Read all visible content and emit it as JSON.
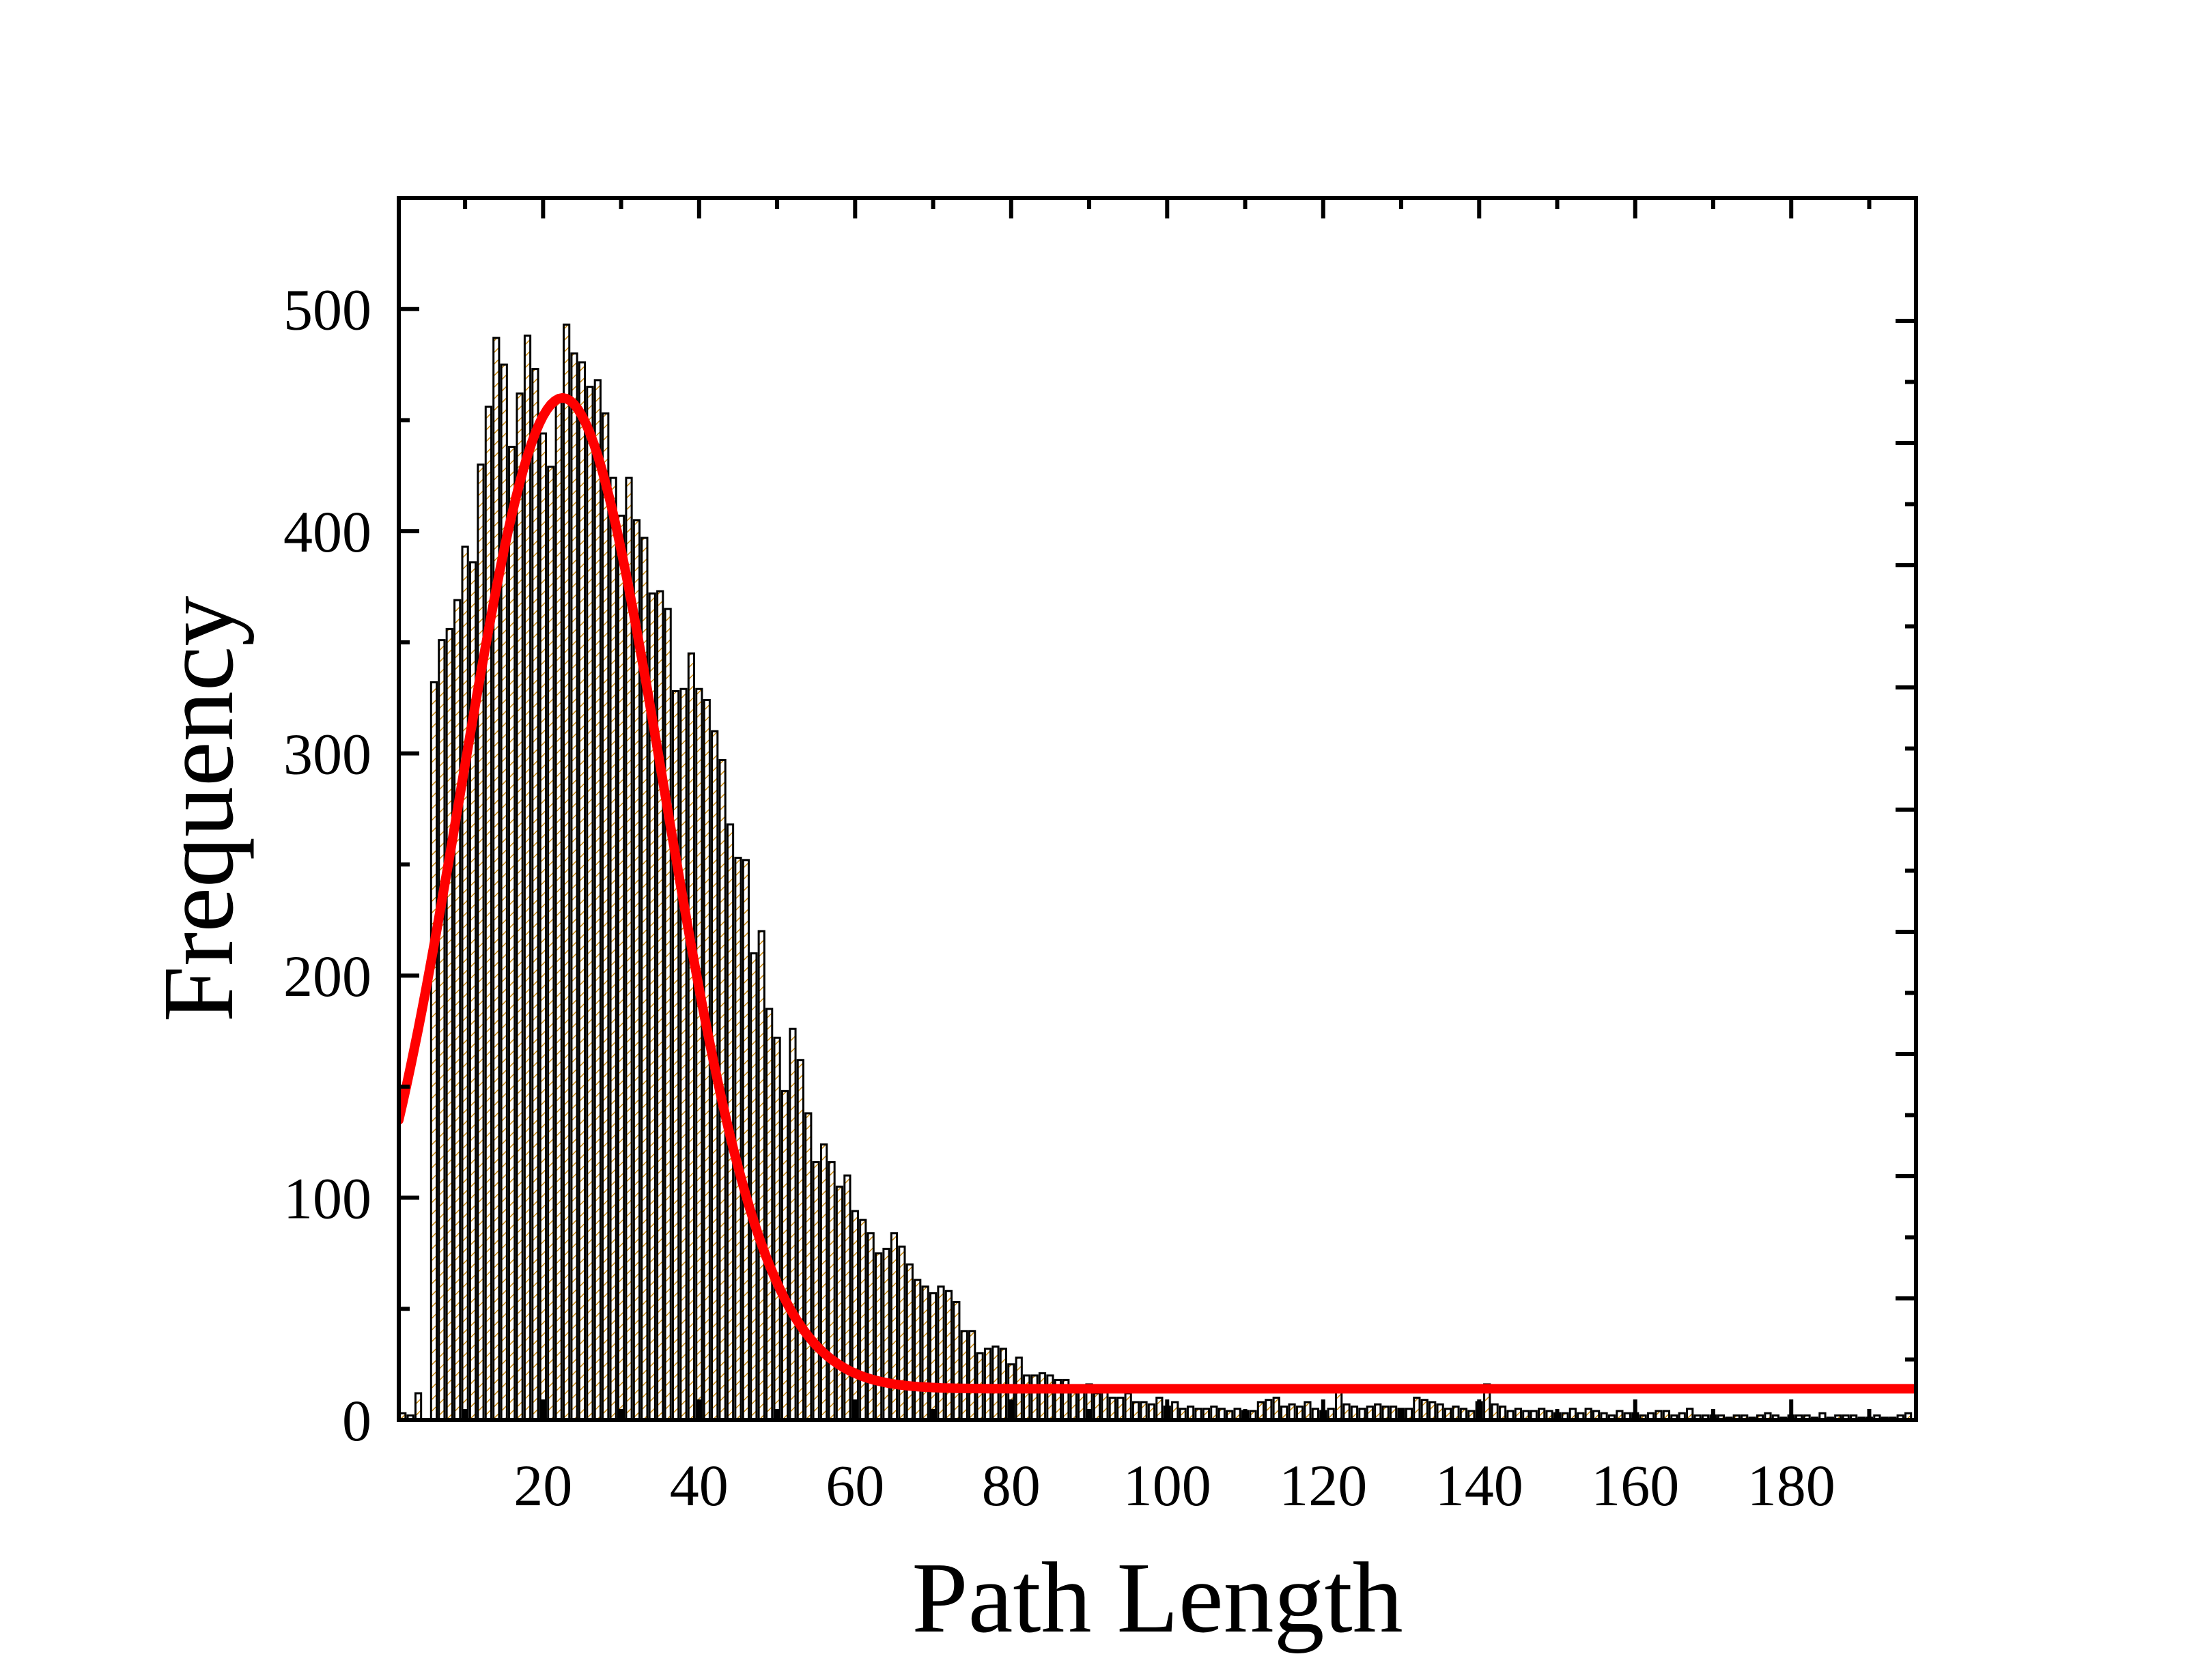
{
  "chart_data": {
    "type": "bar",
    "xlabel": "Path Length",
    "ylabel": "Frequency",
    "xlim": [
      1.5,
      196
    ],
    "ylim": [
      0,
      550
    ],
    "x_ticks": [
      20,
      40,
      60,
      80,
      100,
      120,
      140,
      160,
      180
    ],
    "y_ticks": [
      0,
      100,
      200,
      300,
      400,
      500
    ],
    "bin_width": 1,
    "x": [
      2,
      3,
      4,
      5,
      6,
      7,
      8,
      9,
      10,
      11,
      12,
      13,
      14,
      15,
      16,
      17,
      18,
      19,
      20,
      21,
      22,
      23,
      24,
      25,
      26,
      27,
      28,
      29,
      30,
      31,
      32,
      33,
      34,
      35,
      36,
      37,
      38,
      39,
      40,
      41,
      42,
      43,
      44,
      45,
      46,
      47,
      48,
      49,
      50,
      51,
      52,
      53,
      54,
      55,
      56,
      57,
      58,
      59,
      60,
      61,
      62,
      63,
      64,
      65,
      66,
      67,
      68,
      69,
      70,
      71,
      72,
      73,
      74,
      75,
      76,
      77,
      78,
      79,
      80,
      81,
      82,
      83,
      84,
      85,
      86,
      87,
      88,
      89,
      90,
      91,
      92,
      93,
      94,
      95,
      96,
      97,
      98,
      99,
      100,
      101,
      102,
      103,
      104,
      105,
      106,
      107,
      108,
      109,
      110,
      111,
      112,
      113,
      114,
      115,
      116,
      117,
      118,
      119,
      120,
      121,
      122,
      123,
      124,
      125,
      126,
      127,
      128,
      129,
      130,
      131,
      132,
      133,
      134,
      135,
      136,
      137,
      138,
      139,
      140,
      141,
      142,
      143,
      144,
      145,
      146,
      147,
      148,
      149,
      150,
      151,
      152,
      153,
      154,
      155,
      156,
      157,
      158,
      159,
      160,
      161,
      162,
      163,
      164,
      165,
      166,
      167,
      168,
      169,
      170,
      171,
      172,
      173,
      174,
      175,
      176,
      177,
      178,
      179,
      180,
      181,
      182,
      183,
      184,
      185,
      186,
      187,
      188,
      189,
      190,
      191,
      192,
      193,
      194,
      195
    ],
    "values": [
      3,
      2,
      12,
      0,
      332,
      351,
      356,
      369,
      393,
      386,
      430,
      456,
      487,
      475,
      438,
      462,
      488,
      473,
      444,
      429,
      458,
      493,
      480,
      476,
      465,
      468,
      453,
      424,
      407,
      424,
      405,
      397,
      372,
      373,
      365,
      328,
      329,
      345,
      329,
      324,
      310,
      297,
      268,
      253,
      252,
      210,
      220,
      185,
      172,
      148,
      176,
      162,
      138,
      116,
      124,
      116,
      105,
      110,
      94,
      90,
      84,
      75,
      77,
      84,
      78,
      70,
      63,
      60,
      57,
      60,
      58,
      53,
      40,
      40,
      30,
      32,
      33,
      32,
      25,
      28,
      20,
      20,
      21,
      20,
      18,
      18,
      13,
      14,
      16,
      12,
      13,
      10,
      10,
      12,
      8,
      8,
      7,
      10,
      6,
      8,
      5,
      6,
      5,
      5,
      6,
      5,
      4,
      5,
      4,
      4,
      8,
      9,
      10,
      6,
      7,
      6,
      8,
      5,
      4,
      5,
      15,
      7,
      6,
      5,
      6,
      7,
      6,
      6,
      5,
      5,
      10,
      9,
      8,
      7,
      5,
      6,
      5,
      4,
      8,
      16,
      7,
      6,
      4,
      5,
      4,
      4,
      5,
      4,
      3,
      3,
      5,
      3,
      5,
      4,
      3,
      2,
      4,
      3,
      3,
      2,
      3,
      4,
      4,
      2,
      3,
      5,
      2,
      2,
      2,
      2,
      1,
      2,
      2,
      1,
      2,
      3,
      2,
      1,
      2,
      2,
      2,
      1,
      3,
      1,
      2,
      2,
      2,
      1,
      1,
      2,
      1,
      1,
      2,
      3
    ],
    "fit": {
      "type": "gaussian",
      "y0": 14,
      "center": 22.5,
      "width": 26,
      "amplitude": 446,
      "color": "#ff0000"
    },
    "bar_edge_color": "#000000",
    "bar_fill_color": "#ffffff",
    "bar_hatch_color": "#c8860a"
  }
}
